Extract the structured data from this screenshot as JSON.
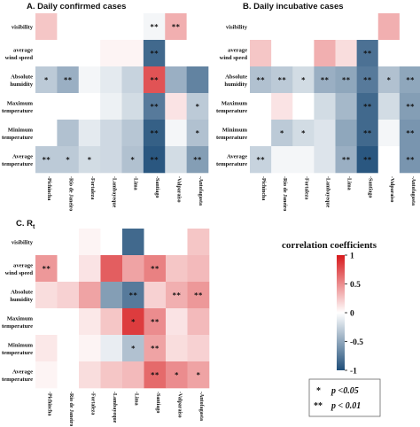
{
  "chart_data": [
    {
      "type": "heatmap",
      "panel": "A.",
      "title": "Daily confirmed cases",
      "rows": [
        "visibility",
        "average wind speed",
        "Absolute humidity",
        "Maximum temperature",
        "Minimum temperature",
        "Average temperature"
      ],
      "columns": [
        "Pichincha",
        "Rio de Janeiro",
        "Fortaleza",
        "Lambayeque",
        "Lima",
        "Santiago",
        "Valparaiso",
        "Antofagasta"
      ],
      "values": [
        [
          0.25,
          0.0,
          null,
          null,
          null,
          -0.05,
          0.35,
          null
        ],
        [
          0.0,
          0.0,
          0.0,
          0.05,
          0.05,
          -0.85,
          0.0,
          null
        ],
        [
          -0.3,
          -0.45,
          -0.05,
          -0.12,
          -0.25,
          0.75,
          -0.45,
          -0.7
        ],
        [
          0.0,
          0.0,
          0.0,
          -0.08,
          -0.2,
          -0.75,
          0.12,
          -0.3
        ],
        [
          0.0,
          -0.35,
          -0.12,
          -0.22,
          -0.32,
          -0.9,
          -0.05,
          -0.35
        ],
        [
          -0.3,
          -0.3,
          -0.2,
          -0.22,
          -0.35,
          -0.95,
          -0.2,
          -0.55
        ]
      ],
      "significance": [
        [
          "",
          "",
          "",
          "",
          "",
          "**",
          "**",
          ""
        ],
        [
          "",
          "",
          "",
          "",
          "",
          "**",
          "",
          ""
        ],
        [
          "*",
          "**",
          "",
          "",
          "",
          "**",
          "",
          ""
        ],
        [
          "",
          "",
          "",
          "",
          "",
          "**",
          "",
          "*"
        ],
        [
          "",
          "",
          "",
          "",
          "",
          "**",
          "",
          "*"
        ],
        [
          "**",
          "*",
          "*",
          "",
          "*",
          "**",
          "",
          "**"
        ]
      ]
    },
    {
      "type": "heatmap",
      "panel": "B.",
      "title": "Daily incubative cases",
      "rows": [
        "visibility",
        "average wind speed",
        "Absolute humidity",
        "Maximum temperature",
        "Minimum temperature",
        "Average temperature"
      ],
      "columns": [
        "Pichincha",
        "Rio de Janeiro",
        "Fortaleza",
        "Lambayeque",
        "Lima",
        "Santiago",
        "Valparaiso",
        "Antofagasta"
      ],
      "values": [
        [
          null,
          null,
          null,
          null,
          null,
          0.0,
          0.35,
          null
        ],
        [
          0.25,
          0.0,
          0.0,
          0.35,
          0.15,
          -0.8,
          0.0,
          null
        ],
        [
          -0.35,
          -0.3,
          -0.2,
          -0.45,
          -0.5,
          -0.75,
          -0.35,
          -0.5
        ],
        [
          0.0,
          0.12,
          0.0,
          -0.2,
          -0.4,
          -0.85,
          -0.2,
          -0.55
        ],
        [
          0.0,
          -0.3,
          -0.2,
          -0.15,
          -0.5,
          -0.85,
          -0.05,
          -0.6
        ],
        [
          -0.25,
          -0.05,
          -0.05,
          -0.15,
          -0.45,
          -0.95,
          0.0,
          -0.6
        ]
      ],
      "significance": [
        [
          "",
          "",
          "",
          "",
          "",
          "",
          "",
          ""
        ],
        [
          "",
          "",
          "",
          "",
          "",
          "**",
          "",
          ""
        ],
        [
          "**",
          "**",
          "*",
          "**",
          "**",
          "**",
          "*",
          "**"
        ],
        [
          "",
          "",
          "",
          "",
          "",
          "**",
          "",
          "**"
        ],
        [
          "",
          "*",
          "*",
          "",
          "",
          "**",
          "",
          "**"
        ],
        [
          "**",
          "",
          "",
          "",
          "**",
          "**",
          "",
          "**"
        ]
      ]
    },
    {
      "type": "heatmap",
      "panel": "C.",
      "title": "R",
      "title_subscript": "t",
      "rows": [
        "visibility",
        "average wind speed",
        "Absolute humidity",
        "Maximum temperature",
        "Minimum temperature",
        "Average temperature"
      ],
      "columns": [
        "Pichincha",
        "Rio de Janeiro",
        "Fortaleza",
        "Lambayeque",
        "Lima",
        "Santiago",
        "Valparaiso",
        "Antofagasta"
      ],
      "values": [
        [
          null,
          null,
          0.05,
          null,
          -0.85,
          null,
          null,
          0.25
        ],
        [
          0.45,
          0.0,
          0.12,
          0.7,
          0.4,
          0.55,
          0.25,
          0.3
        ],
        [
          0.15,
          0.2,
          0.4,
          -0.55,
          -0.75,
          0.2,
          0.35,
          0.45
        ],
        [
          0.0,
          0.0,
          0.1,
          0.25,
          0.85,
          0.5,
          0.12,
          0.3
        ],
        [
          0.1,
          0.0,
          0.05,
          -0.1,
          -0.35,
          0.4,
          0.15,
          0.2
        ],
        [
          0.05,
          0.0,
          0.15,
          0.25,
          0.3,
          0.65,
          0.5,
          0.4
        ]
      ],
      "significance": [
        [
          "",
          "",
          "",
          "",
          "",
          "",
          "",
          ""
        ],
        [
          "**",
          "",
          "",
          "",
          "",
          "**",
          "",
          ""
        ],
        [
          "",
          "",
          "",
          "",
          "**",
          "",
          "**",
          "**"
        ],
        [
          "",
          "",
          "",
          "",
          "*",
          "**",
          "",
          ""
        ],
        [
          "",
          "",
          "",
          "",
          "*",
          "**",
          "",
          ""
        ],
        [
          "",
          "",
          "",
          "",
          "",
          "**",
          "*",
          "*"
        ]
      ]
    }
  ],
  "colorbar": {
    "title": "correlation coefficients",
    "ticks": [
      1,
      0.5,
      0,
      -0.5,
      -1
    ],
    "colors": {
      "positive": "#d7191c",
      "zero": "#ffffff",
      "negative": "#1f4e79"
    }
  },
  "significance_legend": [
    {
      "mark": "*",
      "text": "p <0.05"
    },
    {
      "mark": "**",
      "text": "p < 0.01"
    }
  ]
}
